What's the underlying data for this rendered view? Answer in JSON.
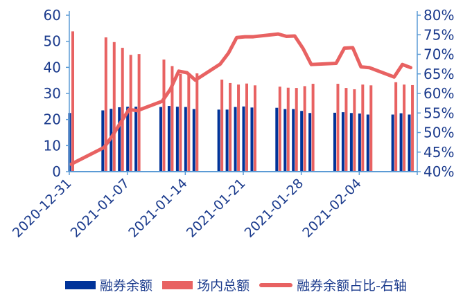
{
  "chart_data": {
    "type": "bar+line",
    "categories": [
      "2020-12-31",
      "2021-01-04",
      "2021-01-05",
      "2021-01-06",
      "2021-01-07",
      "2021-01-08",
      "2021-01-11",
      "2021-01-12",
      "2021-01-13",
      "2021-01-14",
      "2021-01-15",
      "2021-01-18",
      "2021-01-19",
      "2021-01-20",
      "2021-01-21",
      "2021-01-22",
      "2021-01-25",
      "2021-01-26",
      "2021-01-27",
      "2021-01-28",
      "2021-01-29",
      "2021-02-01",
      "2021-02-02",
      "2021-02-03",
      "2021-02-04",
      "2021-02-05",
      "2021-02-08",
      "2021-02-09",
      "2021-02-10"
    ],
    "x_ticks": [
      "2020-12-31",
      "2021-01-07",
      "2021-01-14",
      "2021-01-21",
      "2021-01-28",
      "2021-02-04"
    ],
    "x_range": [
      "2020-12-31",
      "2021-02-11"
    ],
    "y_left": {
      "ticks": [
        "0",
        "10",
        "20",
        "30",
        "40",
        "50",
        "60"
      ],
      "range": [
        0,
        60
      ]
    },
    "y_right": {
      "ticks": [
        "40%",
        "45%",
        "50%",
        "55%",
        "60%",
        "65%",
        "70%",
        "75%",
        "80%"
      ],
      "range": [
        40,
        80
      ]
    },
    "series": [
      {
        "name": "融券余额",
        "type": "bar",
        "axis": "left",
        "color": "#003399",
        "values": [
          22.5,
          23.5,
          24.1,
          24.7,
          24.9,
          24.9,
          24.8,
          25.2,
          24.9,
          24.8,
          24.0,
          23.8,
          23.8,
          24.8,
          25.0,
          24.6,
          24.5,
          24.0,
          24.0,
          23.3,
          22.5,
          22.6,
          22.8,
          22.5,
          22.3,
          21.9,
          21.9,
          22.4,
          21.9
        ]
      },
      {
        "name": "场内总额",
        "type": "bar",
        "axis": "left",
        "color": "#E86262",
        "values": [
          53.8,
          51.5,
          49.7,
          47.5,
          44.8,
          45.1,
          43.0,
          40.5,
          37.5,
          37.0,
          37.7,
          35.3,
          34.0,
          33.4,
          33.8,
          33.1,
          32.6,
          32.2,
          32.1,
          32.8,
          33.7,
          33.7,
          32.1,
          31.6,
          33.4,
          33.1,
          34.3,
          33.4,
          33.2
        ]
      },
      {
        "name": "融券余额占比-右轴",
        "type": "line",
        "axis": "right",
        "color": "#E86262",
        "values": [
          41.9,
          46.2,
          49.2,
          52.6,
          55.9,
          55.6,
          58.0,
          61.1,
          65.7,
          65.3,
          63.4,
          67.5,
          70.3,
          74.3,
          74.5,
          74.5,
          75.2,
          74.6,
          74.7,
          71.5,
          67.4,
          67.7,
          71.6,
          71.7,
          66.8,
          66.6,
          64.2,
          67.4,
          66.6
        ]
      }
    ],
    "legend_position": "bottom",
    "grid": false,
    "axis_color": "#5B9BD5",
    "text_color": "#1A3A8C"
  }
}
